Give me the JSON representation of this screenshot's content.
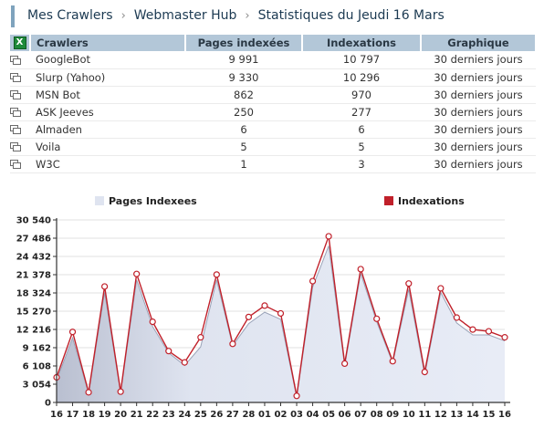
{
  "breadcrumb": {
    "items": [
      "Mes Crawlers",
      "Webmaster Hub"
    ],
    "separator": "›",
    "current": "Statistiques du Jeudi 16 Mars"
  },
  "table": {
    "headers": {
      "crawlers": "Crawlers",
      "pages": "Pages indexées",
      "indexations": "Indexations",
      "graphique": "Graphique"
    },
    "export_icon": "excel-icon",
    "row_icon": "window-icon",
    "rows": [
      {
        "name": "GoogleBot",
        "pages": "9 991",
        "indexations": "10 797",
        "graph": "30 derniers jours"
      },
      {
        "name": "Slurp (Yahoo)",
        "pages": "9 330",
        "indexations": "10 296",
        "graph": "30 derniers jours"
      },
      {
        "name": "MSN Bot",
        "pages": "862",
        "indexations": "970",
        "graph": "30 derniers jours"
      },
      {
        "name": "ASK Jeeves",
        "pages": "250",
        "indexations": "277",
        "graph": "30 derniers jours"
      },
      {
        "name": "Almaden",
        "pages": "6",
        "indexations": "6",
        "graph": "30 derniers jours"
      },
      {
        "name": "Voila",
        "pages": "5",
        "indexations": "5",
        "graph": "30 derniers jours"
      },
      {
        "name": "W3C",
        "pages": "1",
        "indexations": "3",
        "graph": "30 derniers jours"
      }
    ]
  },
  "chart_data": {
    "type": "area",
    "x": [
      "16",
      "17",
      "18",
      "19",
      "20",
      "21",
      "22",
      "23",
      "24",
      "25",
      "26",
      "27",
      "28",
      "01",
      "02",
      "03",
      "04",
      "05",
      "06",
      "07",
      "08",
      "09",
      "10",
      "11",
      "12",
      "13",
      "14",
      "15",
      "16"
    ],
    "series": [
      {
        "name": "Pages Indexees",
        "color": "#dfe4f0",
        "values": [
          3700,
          10800,
          1500,
          18400,
          1600,
          20500,
          12700,
          8300,
          6200,
          9300,
          20500,
          9500,
          13200,
          15100,
          13900,
          900,
          19300,
          26200,
          6100,
          21600,
          13500,
          6600,
          18900,
          4600,
          18400,
          13300,
          11300,
          11300,
          10300
        ]
      },
      {
        "name": "Indexations",
        "color": "#c0202a",
        "values": [
          4200,
          11800,
          1700,
          19400,
          1800,
          21500,
          13500,
          8600,
          6700,
          10900,
          21400,
          9800,
          14300,
          16200,
          14900,
          1100,
          20300,
          27800,
          6500,
          22300,
          14000,
          6900,
          19900,
          5100,
          19100,
          14200,
          12200,
          11900,
          10900
        ]
      }
    ],
    "yticks": [
      "30 540",
      "27 486",
      "24 432",
      "21 378",
      "18 324",
      "15 270",
      "12 216",
      "9 162",
      "6 108",
      "3 054",
      "0"
    ],
    "ylim": [
      0,
      30540
    ],
    "grid": true,
    "legend_position": "top"
  }
}
